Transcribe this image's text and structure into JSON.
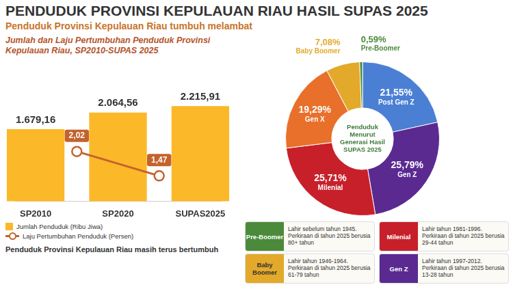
{
  "header": {
    "title": "PENDUDUK PROVINSI KEPULAUAN RIAU HASIL SUPAS 2025",
    "subtitle": "Penduduk Provinsi Kepulauan Riau tumbuh melambat"
  },
  "chart_data": [
    {
      "type": "bar",
      "title": "Jumlah dan Laju Pertumbuhan Penduduk Provinsi Kepulauan Riau, SP2010-SUPAS 2025",
      "categories": [
        "SP2010",
        null,
        "SP2020",
        null,
        "SUPAS2025"
      ],
      "series": [
        {
          "name": "Jumlah Penduduk (Ribu Jiwa)",
          "type": "bar",
          "color": "#fbb829",
          "values": [
            1679.16,
            null,
            2064.56,
            null,
            2215.91
          ],
          "value_labels": [
            "1.679,16",
            null,
            "2.064,56",
            null,
            "2.215,91"
          ]
        },
        {
          "name": "Laju Pertumbuhan Penduduk (Persen)",
          "type": "line",
          "axis": "y2",
          "color": "#c4622d",
          "marker": "circle",
          "values": [
            null,
            2.02,
            null,
            1.47,
            null
          ],
          "value_labels": [
            null,
            "2,02",
            null,
            "1,47",
            null
          ]
        }
      ],
      "ylim": [
        0,
        3000
      ],
      "y2lim": [
        0.9,
        3.8
      ],
      "grid": false,
      "tick_labels": "x",
      "data_labels": true,
      "legend": "bottom"
    },
    {
      "type": "doughnut",
      "title": "Penduduk Menurut Generasi Hasil SUPAS 2025",
      "categories": [
        "Post Gen Z",
        "Gen Z",
        "Milenial",
        "Gen X",
        "Baby Boomer",
        "Pre-Boomer"
      ],
      "values": [
        21.55,
        25.79,
        25.71,
        19.29,
        7.08,
        0.59
      ],
      "value_labels": [
        "21,55%",
        "25,79%",
        "25,71%",
        "19,29%",
        "7,08%",
        "0,59%"
      ],
      "colors": [
        "#4a7fd4",
        "#5b2a91",
        "#c8202a",
        "#e8702a",
        "#e3a92b",
        "#4a8a3a"
      ],
      "data_labels": true
    }
  ],
  "generation_info": [
    {
      "generation": "Pre-Boomer",
      "born": "Lahir sebelum tahun 1945.",
      "age": "Perkiraan di tahun 2025 berusia 80+ tahun"
    },
    {
      "generation": "Milenial",
      "born": "Lahir tahun 1981-1996.",
      "age": "Perkiraan di tahun 2025 berusia 29-44 tahun"
    },
    {
      "generation": "Baby Boomer",
      "born": "Lahir tahun 1946-1964.",
      "age": "Perkiraan di tahun 2025 berusia 61-79 tahun"
    },
    {
      "generation": "Gen Z",
      "born": "Lahir tahun 1997-2012.",
      "age": "Perkiraan di tahun 2025 berusia 13-28 tahun"
    }
  ],
  "footnote": "Penduduk Provinsi Kepulauan Riau masih terus bertumbuh"
}
